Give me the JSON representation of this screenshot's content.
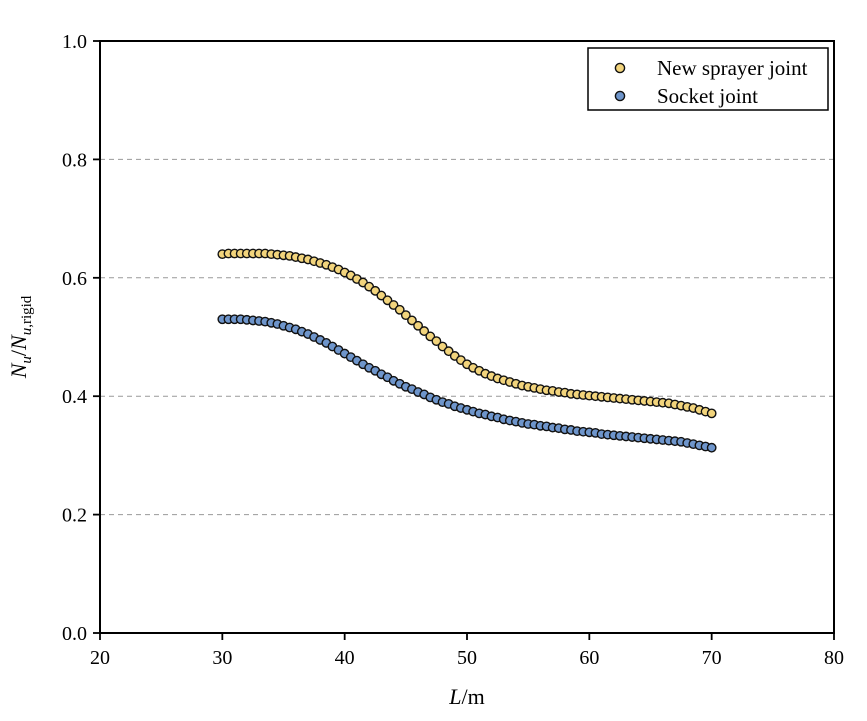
{
  "figure": {
    "background": "#ffffff",
    "axis_color": "#000000",
    "text_color": "#000000"
  },
  "chart_data": {
    "type": "scatter",
    "title": "",
    "xlabel": "L/m",
    "ylabel": "Nu/Nu,rigid",
    "xlabel_rich": [
      {
        "t": "L",
        "italic": true,
        "sub": false
      },
      {
        "t": "/m",
        "italic": false,
        "sub": false
      }
    ],
    "ylabel_rich": [
      {
        "t": "N",
        "italic": true,
        "sub": false
      },
      {
        "t": "u",
        "italic": true,
        "sub": true
      },
      {
        "t": "/",
        "italic": false,
        "sub": false
      },
      {
        "t": "N",
        "italic": true,
        "sub": false
      },
      {
        "t": "u",
        "italic": true,
        "sub": true
      },
      {
        "t": ",rigid",
        "italic": false,
        "sub": true
      }
    ],
    "xlim": [
      20,
      80
    ],
    "ylim": [
      0.0,
      1.0
    ],
    "xticks": [
      20,
      30,
      40,
      50,
      60,
      70,
      80
    ],
    "ytick_labels": [
      "0.0",
      "0.2",
      "0.4",
      "0.6",
      "0.8",
      "1.0"
    ],
    "ytick_values": [
      0.0,
      0.2,
      0.4,
      0.6,
      0.8,
      1.0
    ],
    "grid": {
      "axis": "y",
      "style": "dashed",
      "color": "#999999",
      "at": [
        0.2,
        0.4,
        0.6,
        0.8
      ]
    },
    "legend": {
      "position": "top-right",
      "border": true
    },
    "x": [
      30,
      30.5,
      31,
      31.5,
      32,
      32.5,
      33,
      33.5,
      34,
      34.5,
      35,
      35.5,
      36,
      36.5,
      37,
      37.5,
      38,
      38.5,
      39,
      39.5,
      40,
      40.5,
      41,
      41.5,
      42,
      42.5,
      43,
      43.5,
      44,
      44.5,
      45,
      45.5,
      46,
      46.5,
      47,
      47.5,
      48,
      48.5,
      49,
      49.5,
      50,
      50.5,
      51,
      51.5,
      52,
      52.5,
      53,
      53.5,
      54,
      54.5,
      55,
      55.5,
      56,
      56.5,
      57,
      57.5,
      58,
      58.5,
      59,
      59.5,
      60,
      60.5,
      61,
      61.5,
      62,
      62.5,
      63,
      63.5,
      64,
      64.5,
      65,
      65.5,
      66,
      66.5,
      67,
      67.5,
      68,
      68.5,
      69,
      69.5,
      70
    ],
    "series": [
      {
        "name": "New sprayer joint",
        "marker": "circle",
        "color": "#F2D47C",
        "edge_color": "#111111",
        "values": [
          0.64,
          0.641,
          0.641,
          0.641,
          0.641,
          0.641,
          0.641,
          0.641,
          0.64,
          0.639,
          0.638,
          0.637,
          0.635,
          0.633,
          0.631,
          0.628,
          0.625,
          0.622,
          0.618,
          0.614,
          0.609,
          0.604,
          0.598,
          0.592,
          0.585,
          0.578,
          0.57,
          0.562,
          0.554,
          0.546,
          0.537,
          0.528,
          0.519,
          0.51,
          0.501,
          0.493,
          0.484,
          0.476,
          0.468,
          0.461,
          0.454,
          0.448,
          0.443,
          0.438,
          0.434,
          0.43,
          0.427,
          0.424,
          0.421,
          0.418,
          0.416,
          0.414,
          0.412,
          0.41,
          0.409,
          0.407,
          0.406,
          0.404,
          0.403,
          0.402,
          0.401,
          0.4,
          0.399,
          0.398,
          0.397,
          0.396,
          0.395,
          0.394,
          0.393,
          0.392,
          0.391,
          0.39,
          0.389,
          0.388,
          0.386,
          0.384,
          0.382,
          0.38,
          0.377,
          0.374,
          0.371
        ]
      },
      {
        "name": "Socket joint",
        "marker": "circle",
        "color": "#6E95CB",
        "edge_color": "#111111",
        "values": [
          0.53,
          0.53,
          0.53,
          0.53,
          0.529,
          0.528,
          0.527,
          0.526,
          0.524,
          0.522,
          0.519,
          0.516,
          0.513,
          0.509,
          0.505,
          0.5,
          0.495,
          0.49,
          0.484,
          0.478,
          0.472,
          0.466,
          0.46,
          0.454,
          0.448,
          0.443,
          0.437,
          0.432,
          0.426,
          0.421,
          0.416,
          0.412,
          0.407,
          0.403,
          0.398,
          0.394,
          0.39,
          0.387,
          0.383,
          0.38,
          0.377,
          0.374,
          0.371,
          0.369,
          0.366,
          0.364,
          0.361,
          0.359,
          0.357,
          0.355,
          0.353,
          0.352,
          0.35,
          0.349,
          0.347,
          0.346,
          0.344,
          0.343,
          0.341,
          0.34,
          0.339,
          0.338,
          0.336,
          0.335,
          0.334,
          0.333,
          0.332,
          0.331,
          0.33,
          0.329,
          0.328,
          0.327,
          0.326,
          0.325,
          0.324,
          0.323,
          0.321,
          0.319,
          0.317,
          0.315,
          0.313
        ]
      }
    ]
  }
}
